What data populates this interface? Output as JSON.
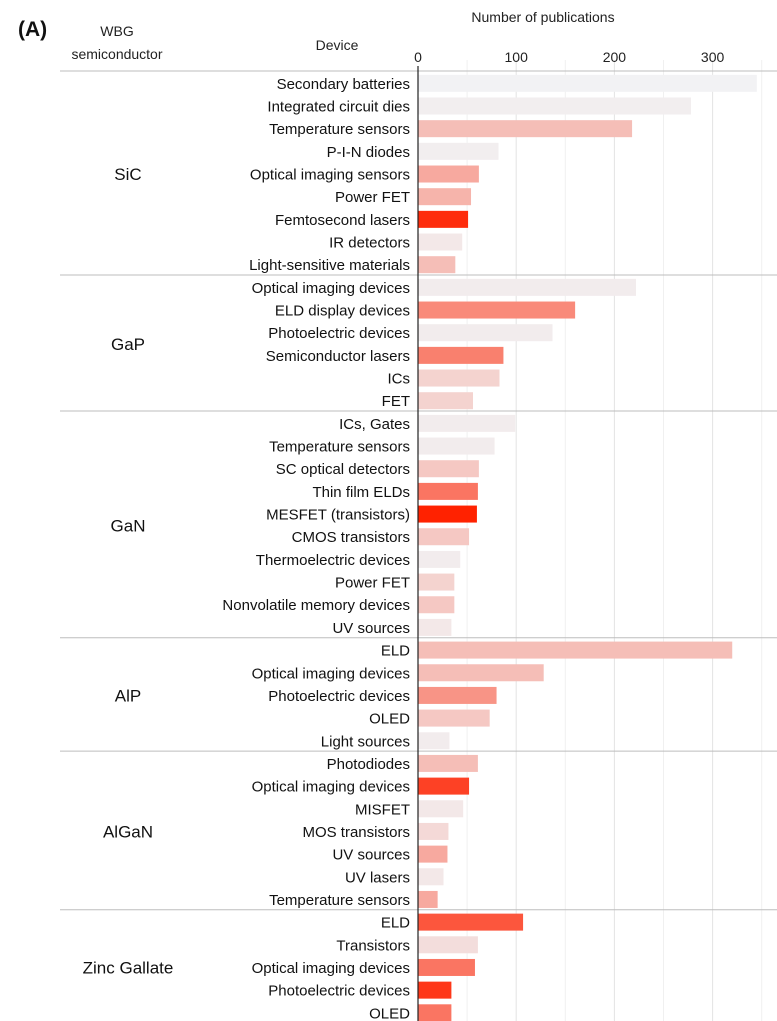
{
  "panel_label": "(A)",
  "chart_data": {
    "type": "bar",
    "orientation": "horizontal",
    "title": "Number of publications",
    "row_header_group": "WBG semiconductor",
    "row_header_device": "Device",
    "xlim": [
      0,
      350
    ],
    "xticks": [
      0,
      100,
      200,
      300
    ],
    "grid": true,
    "color_scale": [
      "#f2f2f4",
      "#ff2200"
    ],
    "groups": [
      {
        "name": "SiC",
        "devices": [
          {
            "label": "Secondary batteries",
            "value": 345,
            "intensity": 0.0
          },
          {
            "label": "Integrated circuit dies",
            "value": 278,
            "intensity": 0.02
          },
          {
            "label": "Temperature sensors",
            "value": 218,
            "intensity": 0.25
          },
          {
            "label": "P-I-N diodes",
            "value": 82,
            "intensity": 0.02
          },
          {
            "label": "Optical imaging sensors",
            "value": 62,
            "intensity": 0.35
          },
          {
            "label": "Power FET",
            "value": 54,
            "intensity": 0.3
          },
          {
            "label": "Femtosecond lasers",
            "value": 51,
            "intensity": 0.95
          },
          {
            "label": "IR detectors",
            "value": 45,
            "intensity": 0.05
          },
          {
            "label": "Light-sensitive materials",
            "value": 38,
            "intensity": 0.25
          }
        ]
      },
      {
        "name": "GaP",
        "devices": [
          {
            "label": "Optical imaging devices",
            "value": 222,
            "intensity": 0.03
          },
          {
            "label": "ELD display devices",
            "value": 160,
            "intensity": 0.5
          },
          {
            "label": "Photoelectric devices",
            "value": 137,
            "intensity": 0.03
          },
          {
            "label": "Semiconductor lasers",
            "value": 87,
            "intensity": 0.55
          },
          {
            "label": "ICs",
            "value": 83,
            "intensity": 0.15
          },
          {
            "label": "FET",
            "value": 56,
            "intensity": 0.15
          }
        ]
      },
      {
        "name": "GaN",
        "devices": [
          {
            "label": "ICs, Gates",
            "value": 99,
            "intensity": 0.03
          },
          {
            "label": "Temperature sensors",
            "value": 78,
            "intensity": 0.03
          },
          {
            "label": "SC optical detectors",
            "value": 62,
            "intensity": 0.2
          },
          {
            "label": "Thin film ELDs",
            "value": 61,
            "intensity": 0.6
          },
          {
            "label": "MESFET (transistors)",
            "value": 60,
            "intensity": 1.0
          },
          {
            "label": "CMOS transistors",
            "value": 52,
            "intensity": 0.2
          },
          {
            "label": "Thermoelectric devices",
            "value": 43,
            "intensity": 0.03
          },
          {
            "label": "Power FET",
            "value": 37,
            "intensity": 0.15
          },
          {
            "label": "Nonvolatile memory devices",
            "value": 37,
            "intensity": 0.2
          },
          {
            "label": "UV sources",
            "value": 34,
            "intensity": 0.05
          }
        ]
      },
      {
        "name": "AlP",
        "devices": [
          {
            "label": "ELD",
            "value": 320,
            "intensity": 0.25
          },
          {
            "label": "Optical imaging devices",
            "value": 128,
            "intensity": 0.25
          },
          {
            "label": "Photoelectric devices",
            "value": 80,
            "intensity": 0.45
          },
          {
            "label": "OLED",
            "value": 73,
            "intensity": 0.2
          },
          {
            "label": "Light sources",
            "value": 32,
            "intensity": 0.03
          }
        ]
      },
      {
        "name": "AlGaN",
        "devices": [
          {
            "label": "Photodiodes",
            "value": 61,
            "intensity": 0.25
          },
          {
            "label": "Optical imaging devices",
            "value": 52,
            "intensity": 0.85
          },
          {
            "label": "MISFET",
            "value": 46,
            "intensity": 0.05
          },
          {
            "label": "MOS transistors",
            "value": 31,
            "intensity": 0.12
          },
          {
            "label": "UV sources",
            "value": 30,
            "intensity": 0.35
          },
          {
            "label": "UV lasers",
            "value": 26,
            "intensity": 0.05
          },
          {
            "label": "Temperature sensors",
            "value": 20,
            "intensity": 0.35
          }
        ]
      },
      {
        "name": "Zinc Gallate",
        "devices": [
          {
            "label": "ELD",
            "value": 107,
            "intensity": 0.75
          },
          {
            "label": "Transistors",
            "value": 61,
            "intensity": 0.1
          },
          {
            "label": "Optical imaging devices",
            "value": 58,
            "intensity": 0.6
          },
          {
            "label": "Photoelectric devices",
            "value": 34,
            "intensity": 0.9
          },
          {
            "label": "OLED",
            "value": 34,
            "intensity": 0.6
          }
        ]
      }
    ]
  }
}
